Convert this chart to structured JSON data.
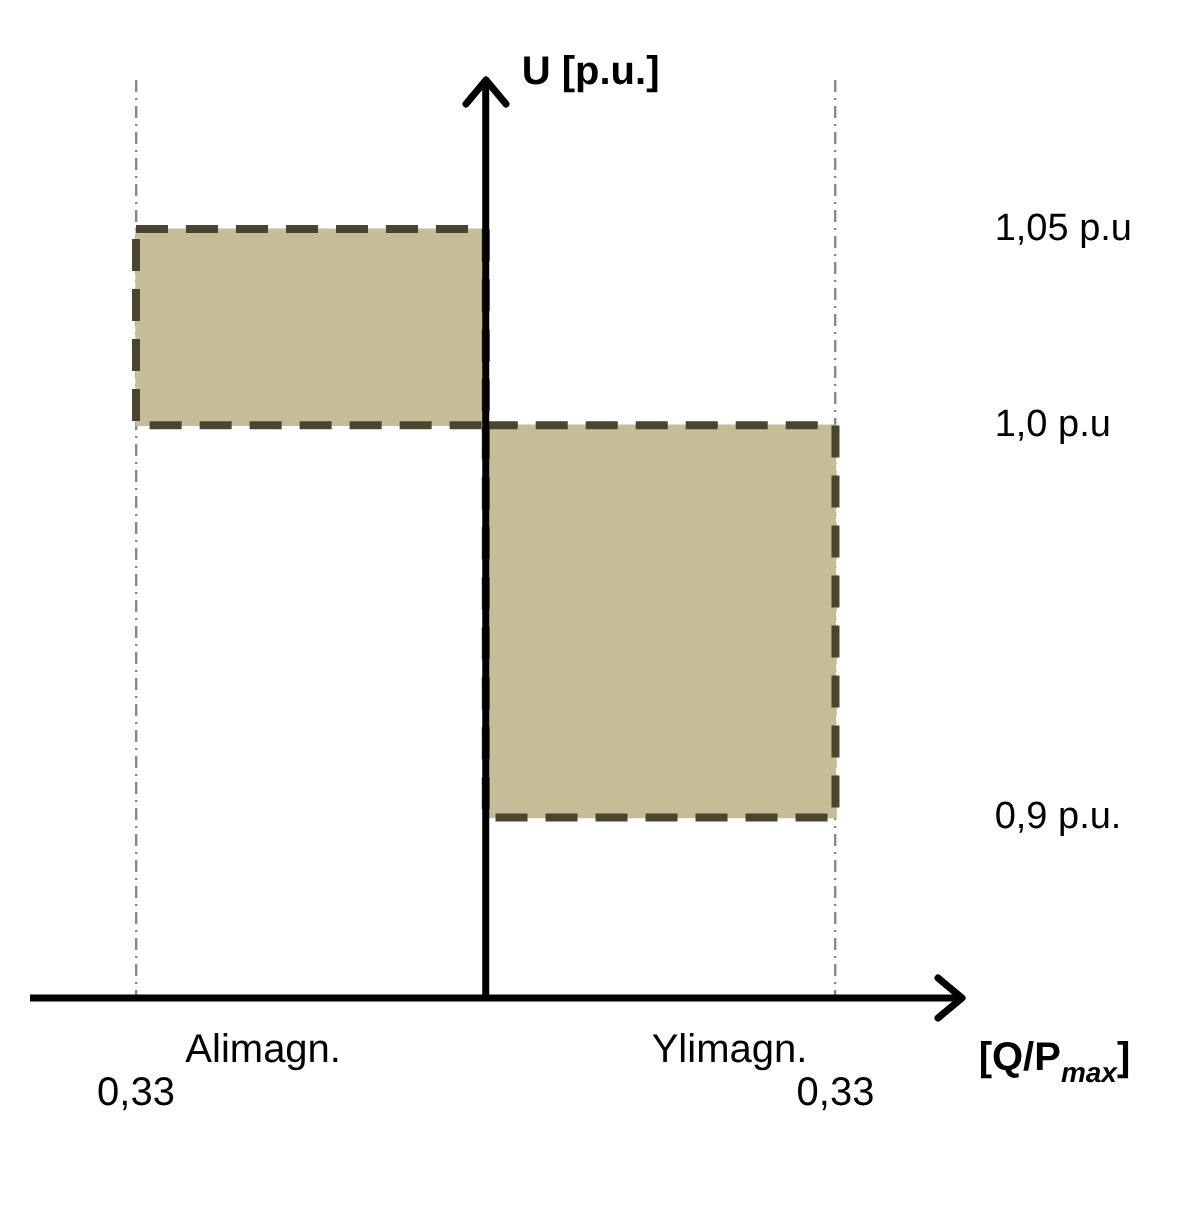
{
  "chart_data": {
    "type": "bar",
    "x": [
      -0.165,
      0.165
    ],
    "base": [
      1.0,
      0.9
    ],
    "values": [
      0.05,
      0.1
    ],
    "color": "#c5bc98",
    "xlim": [
      -0.43,
      0.45
    ],
    "xticks": [
      {
        "value": -0.33,
        "label": "0,33"
      },
      {
        "value": 0.33,
        "label": "0,33"
      }
    ],
    "ylim": [
      0.854,
      1.088
    ],
    "yticks": [
      {
        "value": 0.9,
        "label": "0,9 p.u."
      },
      {
        "value": 1.0,
        "label": "1,0 p.u"
      },
      {
        "value": 1.05,
        "label": "1,05 p.u"
      }
    ],
    "xlabel": "[Q/P$_{max}$]",
    "ylabel": "U [p.u.]",
    "annotations": [
      "Alimagn.",
      "Ylimagn."
    ],
    "grid": "x",
    "legend": false
  }
}
